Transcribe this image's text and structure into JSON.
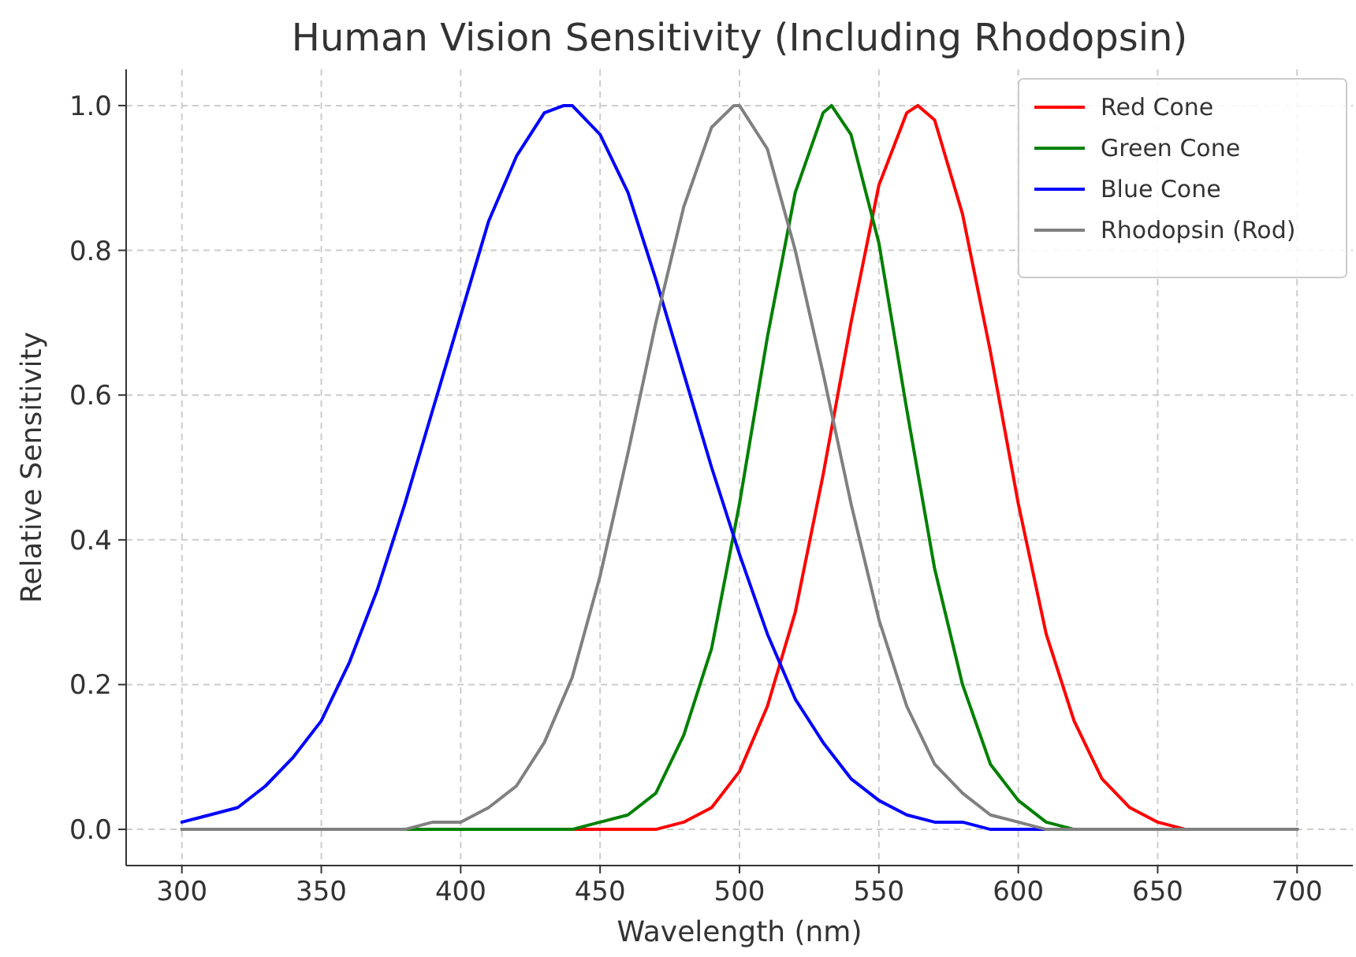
{
  "chart_data": {
    "type": "line",
    "title": "Human Vision Sensitivity (Including Rhodopsin)",
    "xlabel": "Wavelength (nm)",
    "ylabel": "Relative Sensitivity",
    "xlim": [
      280,
      720
    ],
    "xticks": [
      300,
      350,
      400,
      450,
      500,
      550,
      600,
      650,
      700
    ],
    "ylim": [
      -0.05,
      1.05
    ],
    "yticks": [
      {
        "value": 0,
        "label": "0.0"
      },
      {
        "value": 0.2,
        "label": "0.2"
      },
      {
        "value": 0.4,
        "label": "0.4"
      },
      {
        "value": 0.6,
        "label": "0.6"
      },
      {
        "value": 0.8,
        "label": "0.8"
      },
      {
        "value": 1,
        "label": "1.0"
      }
    ],
    "grid": true,
    "legend": "top right",
    "line_style": "solid",
    "marker": "none",
    "series": [
      {
        "name": "Red Cone",
        "color": "#ff0000",
        "x": [
          300,
          470,
          480,
          490,
          500,
          510,
          520,
          530,
          540,
          550,
          560,
          564,
          570,
          580,
          590,
          600,
          610,
          620,
          630,
          640,
          650,
          660,
          700
        ],
        "values": [
          0,
          0,
          0.01,
          0.03,
          0.08,
          0.17,
          0.3,
          0.49,
          0.7,
          0.89,
          0.99,
          1,
          0.98,
          0.85,
          0.66,
          0.45,
          0.27,
          0.15,
          0.07,
          0.03,
          0.01,
          0,
          0
        ]
      },
      {
        "name": "Green Cone",
        "color": "#008000",
        "x": [
          300,
          430,
          440,
          450,
          460,
          470,
          480,
          490,
          500,
          510,
          520,
          530,
          533,
          540,
          550,
          560,
          570,
          580,
          590,
          600,
          610,
          620,
          700
        ],
        "values": [
          0,
          0,
          0,
          0.01,
          0.02,
          0.05,
          0.13,
          0.25,
          0.45,
          0.68,
          0.88,
          0.99,
          1,
          0.96,
          0.81,
          0.58,
          0.36,
          0.2,
          0.09,
          0.04,
          0.01,
          0,
          0
        ]
      },
      {
        "name": "Blue Cone",
        "color": "#0000ff",
        "x": [
          300,
          310,
          320,
          330,
          340,
          350,
          360,
          370,
          380,
          390,
          400,
          410,
          420,
          430,
          437,
          440,
          450,
          460,
          470,
          480,
          490,
          500,
          510,
          520,
          530,
          540,
          550,
          560,
          570,
          580,
          590,
          700
        ],
        "values": [
          0.01,
          0.02,
          0.03,
          0.06,
          0.1,
          0.15,
          0.23,
          0.33,
          0.45,
          0.58,
          0.71,
          0.84,
          0.93,
          0.99,
          1,
          1,
          0.96,
          0.88,
          0.76,
          0.63,
          0.5,
          0.38,
          0.27,
          0.18,
          0.12,
          0.07,
          0.04,
          0.02,
          0.01,
          0.01,
          0,
          0
        ]
      },
      {
        "name": "Rhodopsin (Rod)",
        "color": "#808080",
        "x": [
          300,
          370,
          380,
          390,
          400,
          410,
          420,
          430,
          440,
          450,
          460,
          470,
          480,
          490,
          498,
          500,
          510,
          520,
          530,
          540,
          550,
          560,
          570,
          580,
          590,
          600,
          610,
          700
        ],
        "values": [
          0,
          0,
          0,
          0.01,
          0.01,
          0.03,
          0.06,
          0.12,
          0.21,
          0.35,
          0.52,
          0.7,
          0.86,
          0.97,
          1,
          1,
          0.94,
          0.8,
          0.63,
          0.45,
          0.29,
          0.17,
          0.09,
          0.05,
          0.02,
          0.01,
          0,
          0
        ]
      }
    ]
  }
}
